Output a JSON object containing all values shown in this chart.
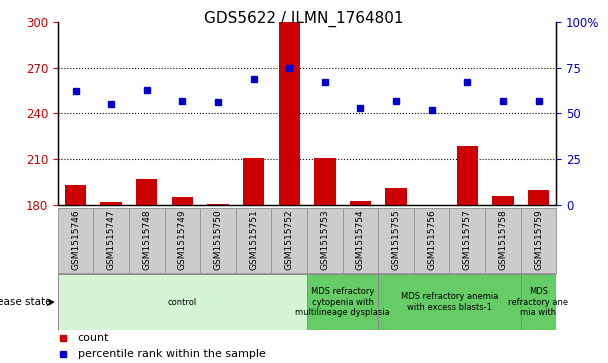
{
  "title": "GDS5622 / ILMN_1764801",
  "samples": [
    "GSM1515746",
    "GSM1515747",
    "GSM1515748",
    "GSM1515749",
    "GSM1515750",
    "GSM1515751",
    "GSM1515752",
    "GSM1515753",
    "GSM1515754",
    "GSM1515755",
    "GSM1515756",
    "GSM1515757",
    "GSM1515758",
    "GSM1515759"
  ],
  "counts": [
    193,
    182,
    197,
    185,
    181,
    211,
    300,
    211,
    183,
    191,
    180,
    219,
    186,
    190
  ],
  "percentiles": [
    62,
    55,
    63,
    57,
    56,
    69,
    75,
    67,
    53,
    57,
    52,
    67,
    57,
    57
  ],
  "ylim_left": [
    180,
    300
  ],
  "ylim_right": [
    0,
    100
  ],
  "yticks_left": [
    180,
    210,
    240,
    270,
    300
  ],
  "yticks_right": [
    0,
    25,
    50,
    75,
    100
  ],
  "bar_color": "#cc0000",
  "dot_color": "#0000cc",
  "disease_groups": [
    {
      "label": "control",
      "start": 0,
      "end": 7,
      "color": "#d4f5d4"
    },
    {
      "label": "MDS refractory\ncytopenia with\nmultilineage dysplasia",
      "start": 7,
      "end": 9,
      "color": "#66cc66"
    },
    {
      "label": "MDS refractory anemia\nwith excess blasts-1",
      "start": 9,
      "end": 13,
      "color": "#66cc66"
    },
    {
      "label": "MDS\nrefractory ane\nmia with",
      "start": 13,
      "end": 14,
      "color": "#66cc66"
    }
  ],
  "disease_state_label": "disease state",
  "legend_count_label": "count",
  "legend_percentile_label": "percentile rank within the sample",
  "title_fontsize": 11,
  "axis_label_color_left": "#cc0000",
  "axis_label_color_right": "#0000cc",
  "tick_bg_color": "#cccccc",
  "tick_border_color": "#999999",
  "grid_ticks": [
    210,
    240,
    270
  ]
}
